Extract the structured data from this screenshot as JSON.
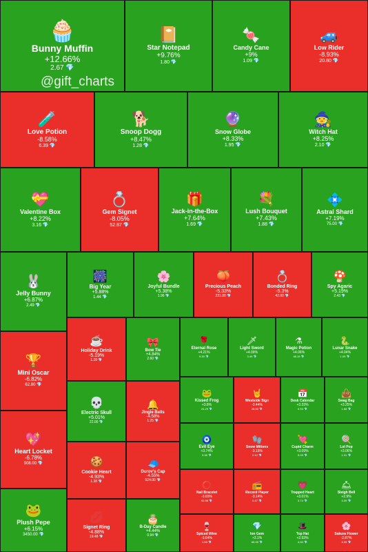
{
  "watermark": "@gift_charts",
  "currency_icon": "💎",
  "colors": {
    "up": "#28a21f",
    "down": "#ea2f2b"
  },
  "tiles": [
    {
      "name": "Bunny Muffin",
      "change": "+12.66%",
      "price": "2.67",
      "dir": "up",
      "icon": "🧁"
    },
    {
      "name": "Star Notepad",
      "change": "+9.76%",
      "price": "1.80",
      "dir": "up",
      "icon": "📔"
    },
    {
      "name": "Candy Cane",
      "change": "+9%",
      "price": "1.09",
      "dir": "up",
      "icon": "🍬"
    },
    {
      "name": "Low Rider",
      "change": "-8.93%",
      "price": "20.80",
      "dir": "down",
      "icon": "🚙"
    },
    {
      "name": "Love Potion",
      "change": "-8.58%",
      "price": "6.39",
      "dir": "down",
      "icon": "🧪"
    },
    {
      "name": "Snoop Dogg",
      "change": "+8.47%",
      "price": "1.28",
      "dir": "up",
      "icon": "🐕"
    },
    {
      "name": "Snow Globe",
      "change": "+8.33%",
      "price": "1.95",
      "dir": "up",
      "icon": "🔮"
    },
    {
      "name": "Witch Hat",
      "change": "+8.25%",
      "price": "2.10",
      "dir": "up",
      "icon": "🧙"
    },
    {
      "name": "Valentine Box",
      "change": "+8.22%",
      "price": "3.16",
      "dir": "up",
      "icon": "💝"
    },
    {
      "name": "Gem Signet",
      "change": "-8.05%",
      "price": "52.87",
      "dir": "down",
      "icon": "💍"
    },
    {
      "name": "Jack-in-the-Box",
      "change": "+7.64%",
      "price": "1.69",
      "dir": "up",
      "icon": "🎁"
    },
    {
      "name": "Lush Bouquet",
      "change": "+7.43%",
      "price": "1.88",
      "dir": "up",
      "icon": "💐"
    },
    {
      "name": "Astral Shard",
      "change": "+7.19%",
      "price": "75.00",
      "dir": "up",
      "icon": "💠"
    },
    {
      "name": "Jelly Bunny",
      "change": "+6.87%",
      "price": "2.49",
      "dir": "up",
      "icon": "🐰"
    },
    {
      "name": "Big Year",
      "change": "+5.88%",
      "price": "1.44",
      "dir": "up",
      "icon": "🎆"
    },
    {
      "name": "Joyful Bundle",
      "change": "+5.38%",
      "price": "1.96",
      "dir": "up",
      "icon": "🌸"
    },
    {
      "name": "Precious Peach",
      "change": "-5.33%",
      "price": "231.00",
      "dir": "down",
      "icon": "🍑"
    },
    {
      "name": "Bonded Ring",
      "change": "-5.3%",
      "price": "42.00",
      "dir": "down",
      "icon": "💍"
    },
    {
      "name": "Spy Agaric",
      "change": "+5.19%",
      "price": "2.43",
      "dir": "up",
      "icon": "🍄"
    },
    {
      "name": "Mini Oscar",
      "change": "-6.82%",
      "price": "62.80",
      "dir": "down",
      "icon": "🏆"
    },
    {
      "name": "Holiday Drink",
      "change": "-5.19%",
      "price": "1.28",
      "dir": "down",
      "icon": "☕"
    },
    {
      "name": "Bow Tie",
      "change": "+4.84%",
      "price": "2.60",
      "dir": "up",
      "icon": "🎀"
    },
    {
      "name": "Eternal Rose",
      "change": "+4.21%",
      "price": "9.30",
      "dir": "up",
      "icon": "🌹"
    },
    {
      "name": "Light Sword",
      "change": "+4.09%",
      "price": "3.49",
      "dir": "up",
      "icon": "🗡"
    },
    {
      "name": "Magic Potion",
      "change": "+4.06%",
      "price": "48.19",
      "dir": "up",
      "icon": "⚗"
    },
    {
      "name": "Lunar Snake",
      "change": "+4.04%",
      "price": "1.09",
      "dir": "up",
      "icon": "🐍"
    },
    {
      "name": "Electric Skull",
      "change": "+5.01%",
      "price": "22.00",
      "dir": "up",
      "icon": "💀"
    },
    {
      "name": "Jingle Bells",
      "change": "-4.58%",
      "price": "1.25",
      "dir": "down",
      "icon": "🔔"
    },
    {
      "name": "Kissed Frog",
      "change": "+3.8%",
      "price": "24.29",
      "dir": "up",
      "icon": "🐸"
    },
    {
      "name": "Westside Sign",
      "change": "-3.44%",
      "price": "28.50",
      "dir": "down",
      "icon": "🤘"
    },
    {
      "name": "Desk Calendar",
      "change": "+3.33%",
      "price": "0.93",
      "dir": "up",
      "icon": "📅"
    },
    {
      "name": "Swag Bag",
      "change": "+3.25%",
      "price": "1.68",
      "dir": "up",
      "icon": "👜"
    },
    {
      "name": "Heart Locket",
      "change": "-6.78%",
      "price": "908.00",
      "dir": "down",
      "icon": "💖"
    },
    {
      "name": "Cookie Heart",
      "change": "-4.93%",
      "price": "1.38",
      "dir": "down",
      "icon": "🍪"
    },
    {
      "name": "Durov's Cap",
      "change": "-4.55%",
      "price": "524.00",
      "dir": "down",
      "icon": "🧢"
    },
    {
      "name": "Evil Eye",
      "change": "+3.74%",
      "price": "3.36",
      "dir": "up",
      "icon": "🧿"
    },
    {
      "name": "Snow Mittens",
      "change": "-3.15%",
      "price": "2.12",
      "dir": "down",
      "icon": "🧤"
    },
    {
      "name": "Cupid Charm",
      "change": "+3.09%",
      "price": "9.09",
      "dir": "up",
      "icon": "💘"
    },
    {
      "name": "Lol Pop",
      "change": "+3.06%",
      "price": "1.31",
      "dir": "up",
      "icon": "🍭"
    },
    {
      "name": "Nail Bracelet",
      "change": "-3.65%",
      "price": "92.98",
      "dir": "down",
      "icon": "⭕"
    },
    {
      "name": "Record Player",
      "change": "-3.14%",
      "price": "3.47",
      "dir": "down",
      "icon": "📻"
    },
    {
      "name": "Trapped Heart",
      "change": "+3.01%",
      "price": "3.74",
      "dir": "up",
      "icon": "💗"
    },
    {
      "name": "Sleigh Bell",
      "change": "+2.9%",
      "price": "3.39",
      "dir": "up",
      "icon": "🛎"
    },
    {
      "name": "Plush Pepe",
      "change": "+6.15%",
      "price": "3450.00",
      "dir": "up",
      "icon": "🐸"
    },
    {
      "name": "Signet Ring",
      "change": "-4.88%",
      "price": "19.48",
      "dir": "down",
      "icon": "💋"
    },
    {
      "name": "B-Day Candle",
      "change": "+4.44%",
      "price": "0.94",
      "dir": "up",
      "icon": "🎂"
    },
    {
      "name": "Spiced Wine",
      "change": "-3.64%",
      "price": "1.53",
      "dir": "down",
      "icon": "🍷"
    },
    {
      "name": "Ion Gem",
      "change": "+3.1%",
      "price": "65.95",
      "dir": "up",
      "icon": "💎"
    },
    {
      "name": "Top Hat",
      "change": "+2.93%",
      "price": "4.60",
      "dir": "up",
      "icon": "🎩"
    },
    {
      "name": "Sakura Flower",
      "change": "-2.87%",
      "price": "3.39",
      "dir": "down",
      "icon": "🌸"
    }
  ]
}
